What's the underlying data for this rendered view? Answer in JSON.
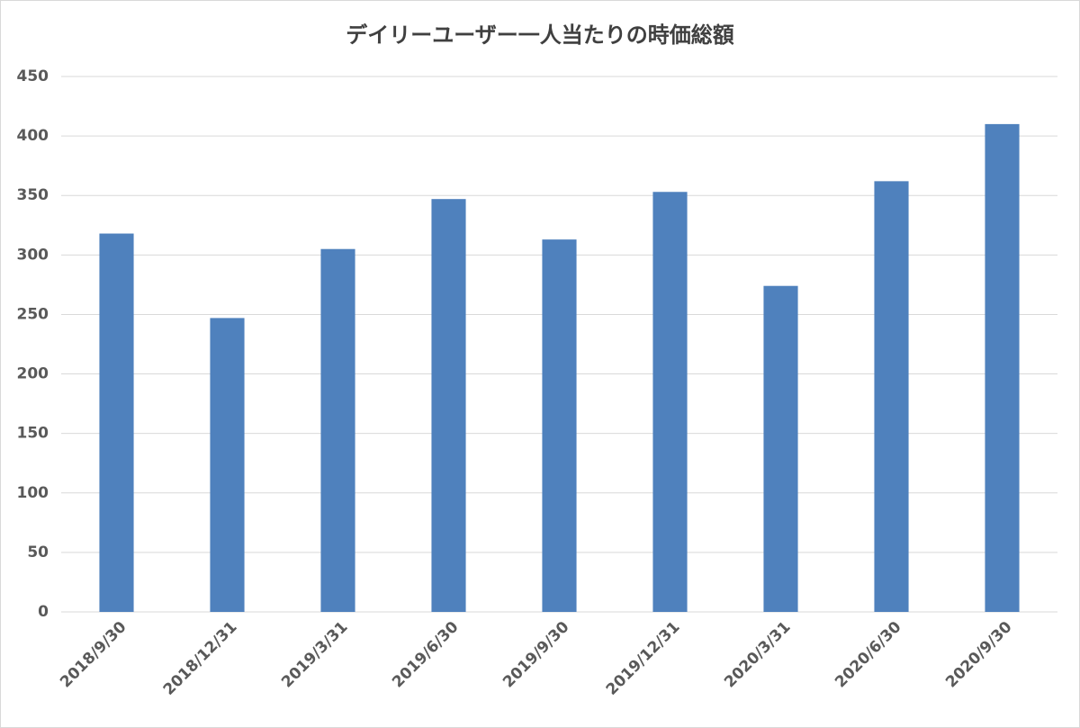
{
  "chart_data": {
    "type": "bar",
    "title": "デイリーユーザー一人当たりの時価総額",
    "categories": [
      "2018/9/30",
      "2018/12/31",
      "2019/3/31",
      "2019/6/30",
      "2019/9/30",
      "2019/12/31",
      "2020/3/31",
      "2020/6/30",
      "2020/9/30"
    ],
    "values": [
      318,
      247,
      305,
      347,
      313,
      353,
      274,
      362,
      410
    ],
    "color": "#4f81bd",
    "ylim": [
      0,
      450
    ],
    "yticks": [
      0,
      50,
      100,
      150,
      200,
      250,
      300,
      350,
      400,
      450
    ],
    "grid": true
  }
}
